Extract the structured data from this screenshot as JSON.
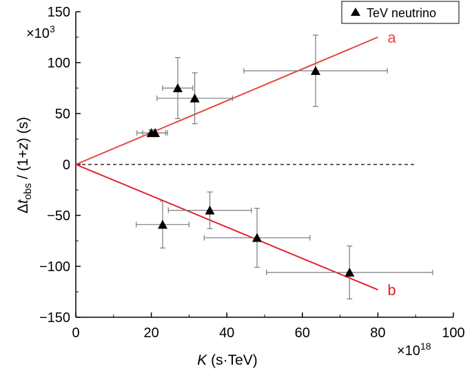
{
  "chart_data": {
    "type": "scatter",
    "title": "",
    "xlabel": {
      "italic": "K",
      "rest": " (s·TeV)"
    },
    "ylabel": {
      "prefix": "Δ",
      "italic_t": "t",
      "sub": "obs",
      "middle": " / (1+",
      "italic_z": "z",
      "suffix": ") (s)"
    },
    "x_multiplier": {
      "base": "×10",
      "exp": "18"
    },
    "y_multiplier": {
      "base": "×10",
      "exp": "3"
    },
    "xlim": [
      0,
      100
    ],
    "ylim": [
      -150,
      150
    ],
    "x_ticks": [
      0,
      20,
      40,
      60,
      80,
      100
    ],
    "y_ticks": [
      -150,
      -100,
      -50,
      0,
      50,
      100,
      150
    ],
    "x_tick_labels": [
      "0",
      "20",
      "40",
      "60",
      "80",
      "100"
    ],
    "y_tick_labels": [
      "−150",
      "−100",
      "−50",
      "0",
      "50",
      "100",
      "150"
    ],
    "legend": {
      "label": "TeV neutrino",
      "position": "top-right"
    },
    "series": [
      {
        "name": "TeV neutrino",
        "points": [
          {
            "x": 20.0,
            "y": 31,
            "xerr": 3.8,
            "yerr": 3
          },
          {
            "x": 21.0,
            "y": 31,
            "xerr": 3.3,
            "yerr": 3
          },
          {
            "x": 27.0,
            "y": 75,
            "xerr": 4.0,
            "yerr": 30
          },
          {
            "x": 31.5,
            "y": 65,
            "xerr": 10.0,
            "yerr": 25
          },
          {
            "x": 63.5,
            "y": 92,
            "xerr": 19.0,
            "yerr": 35
          },
          {
            "x": 23.0,
            "y": -59,
            "xerr": 7.0,
            "yerr": 23
          },
          {
            "x": 35.5,
            "y": -45,
            "xerr": 11.0,
            "yerr": 18
          },
          {
            "x": 48.0,
            "y": -72,
            "xerr": 14.0,
            "yerr": 29
          },
          {
            "x": 72.5,
            "y": -106,
            "xerr": 22.0,
            "yerr": 26
          }
        ]
      }
    ],
    "fit_lines": [
      {
        "name": "a",
        "label": "a",
        "color": "#e8473f",
        "x": [
          0,
          80
        ],
        "y": [
          0,
          125
        ]
      },
      {
        "name": "b",
        "label": "b",
        "color": "#e2202b",
        "x": [
          0,
          80
        ],
        "y": [
          0,
          -123
        ]
      }
    ],
    "reference_line": {
      "y": 0,
      "x": [
        0,
        90
      ],
      "style": "dashed"
    }
  }
}
